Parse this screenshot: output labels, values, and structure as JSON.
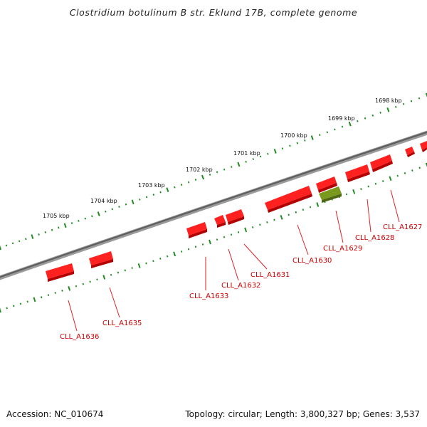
{
  "title": "Clostridium botulinum B str. Eklund 17B, complete genome",
  "ticks": [
    "1698 kbp",
    "1699 kbp",
    "1700 kbp",
    "1701 kbp",
    "1702 kbp",
    "1703 kbp",
    "1704 kbp",
    "1705 kbp"
  ],
  "genes": [
    {
      "label": "CLL_A1627",
      "color": "#ff1a1a"
    },
    {
      "label": "CLL_A1628",
      "color": "#ff1a1a"
    },
    {
      "label": "CLL_A1629",
      "color": "#ff1a1a"
    },
    {
      "label": "CLL_A1630",
      "color": "#ff1a1a"
    },
    {
      "label": "CLL_A1631",
      "color": "#ff1a1a"
    },
    {
      "label": "CLL_A1632",
      "color": "#ff1a1a"
    },
    {
      "label": "CLL_A1633",
      "color": "#ff1a1a"
    },
    {
      "label": "CLL_A1635",
      "color": "#ff1a1a"
    },
    {
      "label": "CLL_A1636",
      "color": "#ff1a1a"
    }
  ],
  "other_feature_color": "#6b8e23",
  "backbone_color": "#808080",
  "tick_color": "#228b22",
  "footer": {
    "accession": "Accession: NC_010674",
    "summary": "Topology: circular; Length: 3,800,327 bp; Genes: 3,537"
  }
}
